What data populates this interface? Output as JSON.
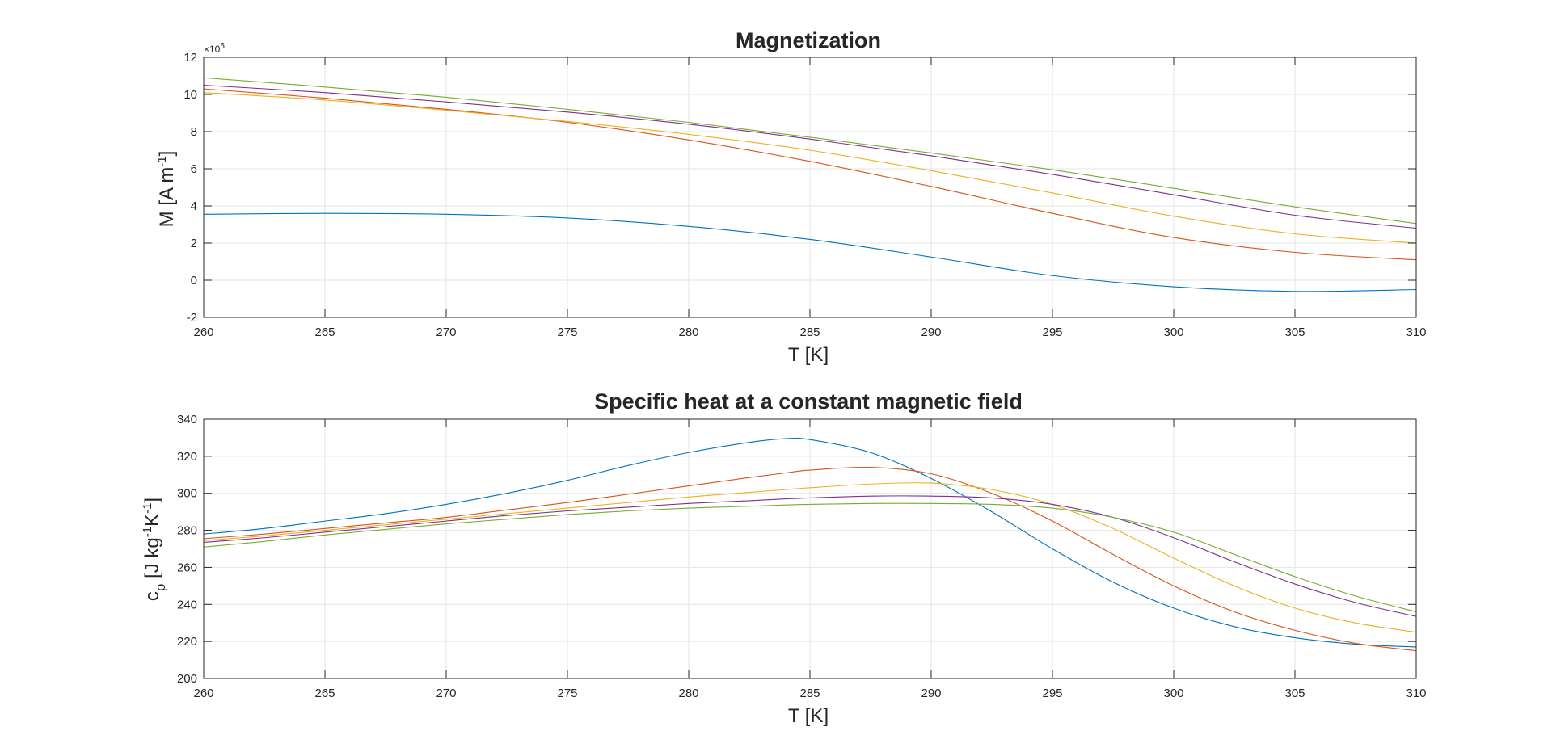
{
  "colors": {
    "background": "#ffffff",
    "axis": "#262626",
    "grid": "#e6e6e6",
    "series": [
      "#0072bd",
      "#d95319",
      "#edb120",
      "#7e2f8e",
      "#77ac30"
    ]
  },
  "chart_data": [
    {
      "type": "line",
      "title": "Magnetization",
      "xlabel": "T [K]",
      "ylabel": "M [A m",
      "ylabel_sup": "-1",
      "ylabel_end": "]",
      "y_exponent_base": "×10",
      "y_exponent_power": "5",
      "xlim": [
        260,
        310
      ],
      "ylim": [
        -2,
        12
      ],
      "xticks": [
        "260",
        "265",
        "270",
        "275",
        "280",
        "285",
        "290",
        "295",
        "300",
        "305",
        "310"
      ],
      "yticks": [
        "-2",
        "0",
        "2",
        "4",
        "6",
        "8",
        "10",
        "12"
      ],
      "grid": true,
      "x": [
        260,
        265,
        270,
        275,
        280,
        285,
        290,
        295,
        300,
        305,
        310
      ],
      "series": [
        {
          "values": [
            3.55,
            3.6,
            3.55,
            3.35,
            2.9,
            2.2,
            1.25,
            0.25,
            -0.35,
            -0.6,
            -0.5
          ]
        },
        {
          "values": [
            10.3,
            9.8,
            9.2,
            8.5,
            7.55,
            6.4,
            5.05,
            3.6,
            2.3,
            1.5,
            1.1
          ]
        },
        {
          "values": [
            10.1,
            9.7,
            9.15,
            8.55,
            7.85,
            7.0,
            5.9,
            4.7,
            3.45,
            2.5,
            2.0
          ]
        },
        {
          "values": [
            10.5,
            10.1,
            9.6,
            9.05,
            8.4,
            7.6,
            6.7,
            5.7,
            4.6,
            3.5,
            2.8
          ]
        },
        {
          "values": [
            10.9,
            10.4,
            9.85,
            9.2,
            8.5,
            7.7,
            6.85,
            5.95,
            4.95,
            3.95,
            3.05
          ]
        }
      ]
    },
    {
      "type": "line",
      "title": "Specific heat at a constant magnetic field",
      "xlabel": "T [K]",
      "ylabel": "c",
      "ylabel_sub": "p",
      "ylabel_mid": " [J kg",
      "ylabel_sup1": "-1",
      "ylabel_mid2": "K",
      "ylabel_sup2": "-1",
      "ylabel_end": "]",
      "xlim": [
        260,
        310
      ],
      "ylim": [
        200,
        340
      ],
      "xticks": [
        "260",
        "265",
        "270",
        "275",
        "280",
        "285",
        "290",
        "295",
        "300",
        "305",
        "310"
      ],
      "yticks": [
        "200",
        "220",
        "240",
        "260",
        "280",
        "300",
        "320",
        "340"
      ],
      "grid": true,
      "x": [
        260,
        262.5,
        265,
        267.5,
        270,
        272.5,
        275,
        277.5,
        280,
        282.5,
        284,
        285,
        287.5,
        290,
        292.5,
        295,
        297.5,
        300,
        302.5,
        305,
        307.5,
        310
      ],
      "series": [
        {
          "values": [
            278,
            281,
            285,
            289,
            294,
            300,
            307,
            315,
            322,
            327.5,
            329.5,
            329,
            322,
            308,
            290,
            270,
            252,
            238,
            228,
            222,
            218.5,
            217
          ]
        },
        {
          "values": [
            275.5,
            278,
            281,
            284,
            287,
            291,
            295,
            299.5,
            304,
            308.5,
            311,
            312.5,
            314,
            310.5,
            300,
            285,
            267,
            250,
            236,
            226,
            219,
            215
          ]
        },
        {
          "values": [
            274.5,
            277,
            280,
            283,
            286,
            289,
            292,
            295,
            298,
            300.5,
            302,
            303,
            305,
            305.5,
            302,
            294,
            281,
            265,
            250,
            238,
            230,
            225
          ]
        },
        {
          "values": [
            273.5,
            276,
            279,
            282,
            285,
            288,
            290.5,
            292.5,
            294.5,
            296,
            297,
            297.5,
            298.5,
            298.5,
            297.5,
            294,
            287,
            276,
            263,
            251,
            241,
            233.5
          ]
        },
        {
          "values": [
            271,
            274,
            277.5,
            280.5,
            283.5,
            286,
            288.5,
            290.5,
            292,
            293,
            293.7,
            294,
            294.5,
            294.5,
            294,
            292,
            287,
            279,
            267,
            255,
            244.5,
            236
          ]
        }
      ]
    }
  ]
}
